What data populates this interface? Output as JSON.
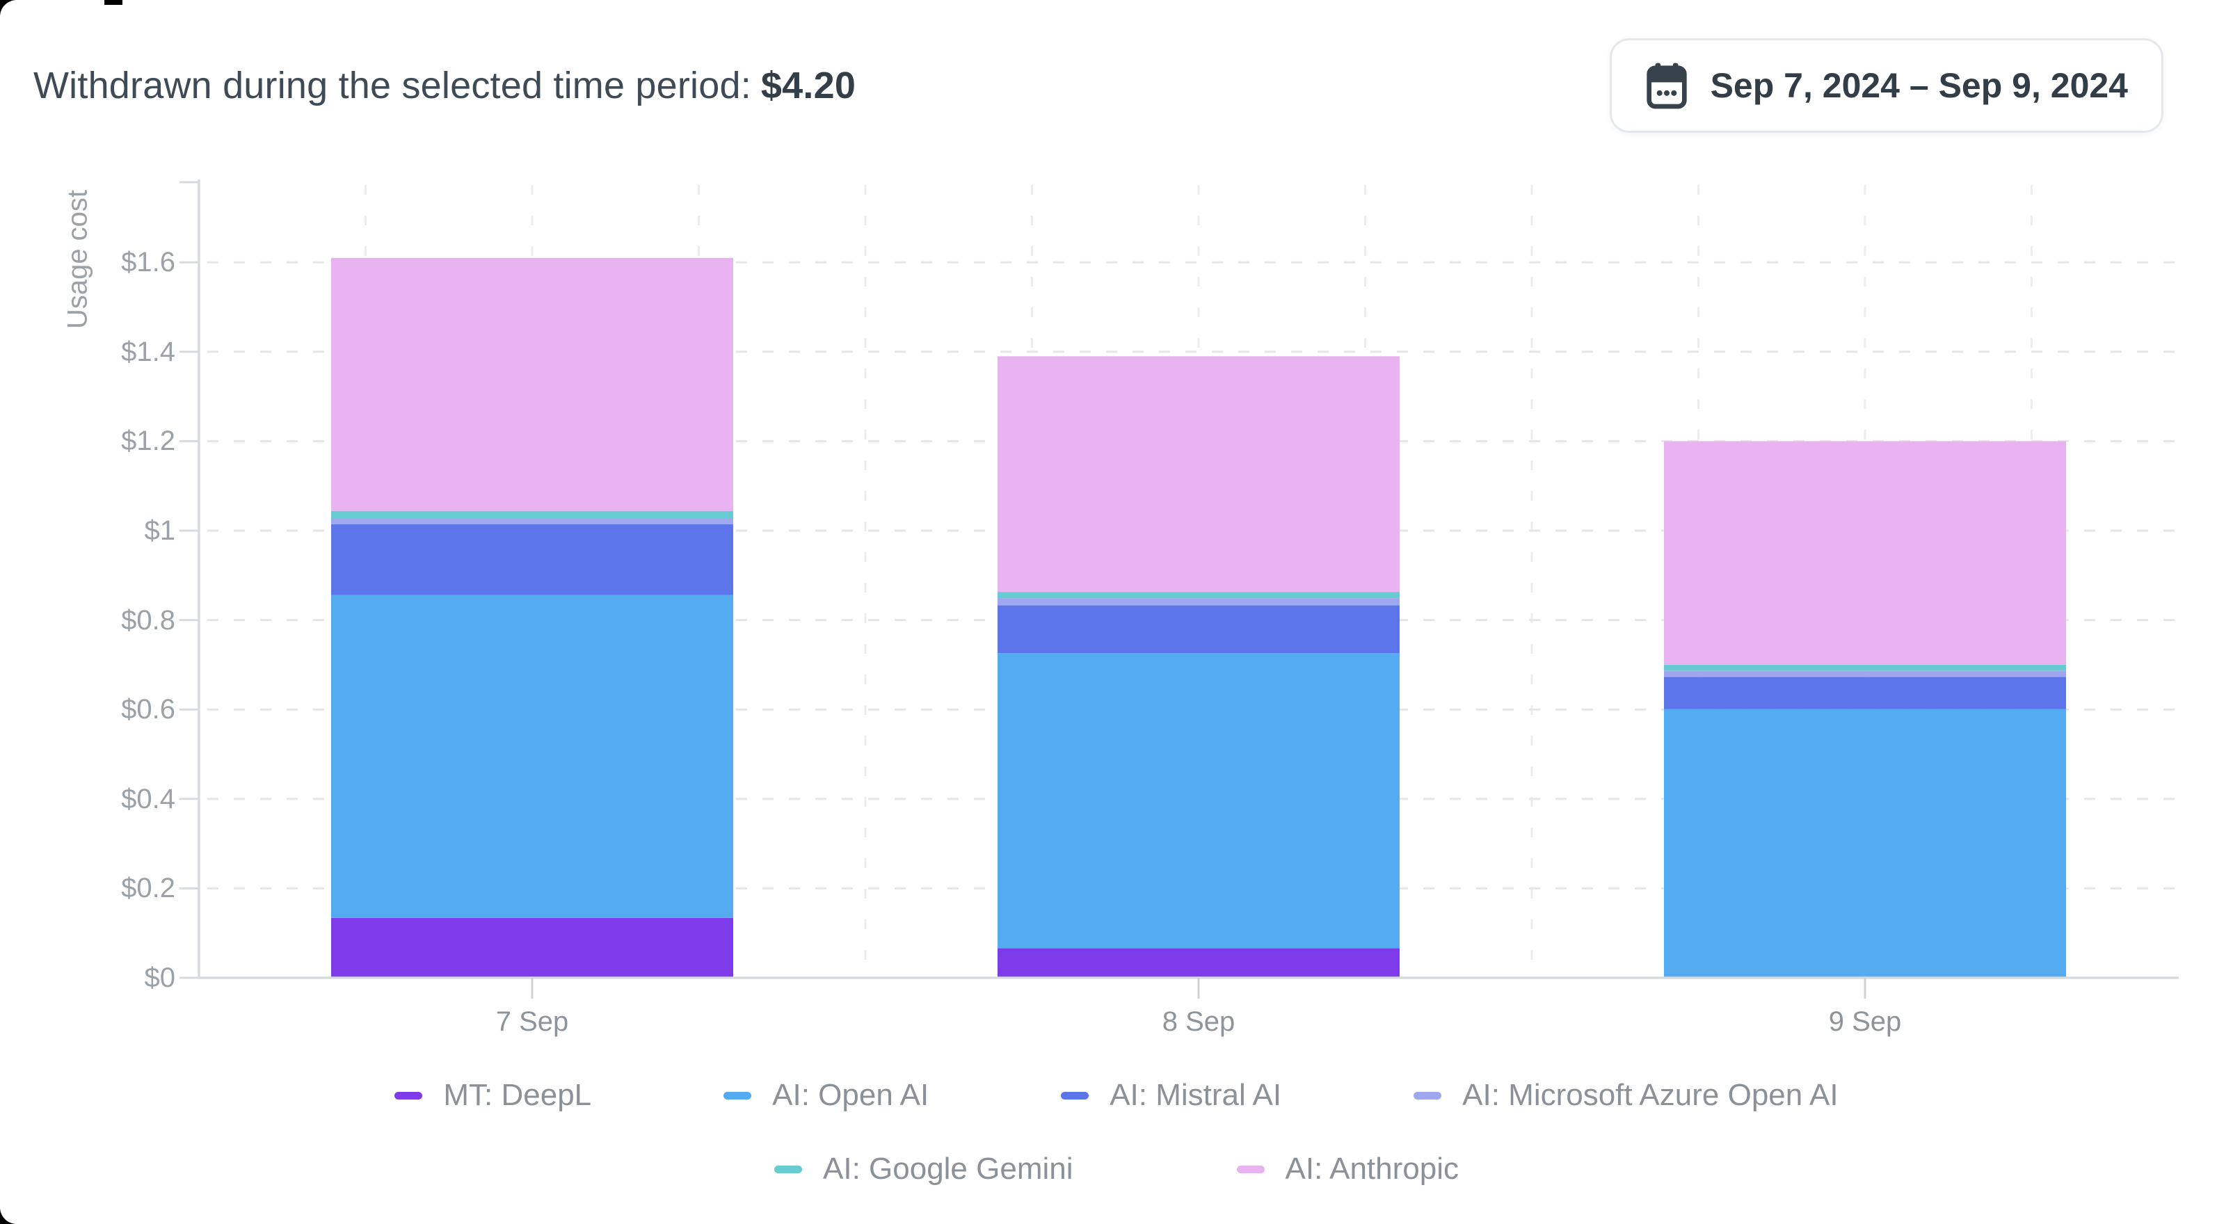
{
  "header": {
    "label": "Withdrawn during the selected time period:",
    "amount": "$4.20"
  },
  "date_range_button": {
    "icon": "calendar-icon",
    "label": "Sep 7, 2024 – Sep 9, 2024"
  },
  "chart_data": {
    "type": "bar",
    "stacked": true,
    "title": "",
    "xlabel": "",
    "ylabel": "Usage cost",
    "categories": [
      "7 Sep",
      "8 Sep",
      "9 Sep"
    ],
    "series": [
      {
        "name": "MT: DeepL",
        "color": "#7d3bea",
        "values": [
          0.134,
          0.066,
          0
        ]
      },
      {
        "name": "AI: Open AI",
        "color": "#54abf0",
        "values": [
          0.722,
          0.66,
          0.601
        ]
      },
      {
        "name": "AI: Mistral AI",
        "color": "#5c76ea",
        "values": [
          0.158,
          0.107,
          0.072
        ]
      },
      {
        "name": "AI: Microsoft Azure Open AI",
        "color": "#9fa8ee",
        "values": [
          0.014,
          0.016,
          0.014
        ]
      },
      {
        "name": "AI: Google Gemini",
        "color": "#66ccd2",
        "values": [
          0.016,
          0.014,
          0.013
        ]
      },
      {
        "name": "AI: Anthropic",
        "color": "#e9b3f2",
        "values": [
          0.566,
          0.527,
          0.5
        ]
      }
    ],
    "totals": [
      1.61,
      1.39,
      1.2
    ],
    "yticks": [
      "$0",
      "$0.2",
      "$0.4",
      "$0.6",
      "$0.8",
      "$1",
      "$1.2",
      "$1.4",
      "$1.6"
    ],
    "ytick_values": [
      0,
      0.2,
      0.4,
      0.6,
      0.8,
      1.0,
      1.2,
      1.4,
      1.6
    ],
    "ylim": [
      0,
      1.79
    ],
    "grid": "dashed",
    "legend_position": "bottom",
    "legend_rows": [
      [
        0,
        1,
        2,
        3
      ],
      [
        4,
        5
      ]
    ]
  }
}
